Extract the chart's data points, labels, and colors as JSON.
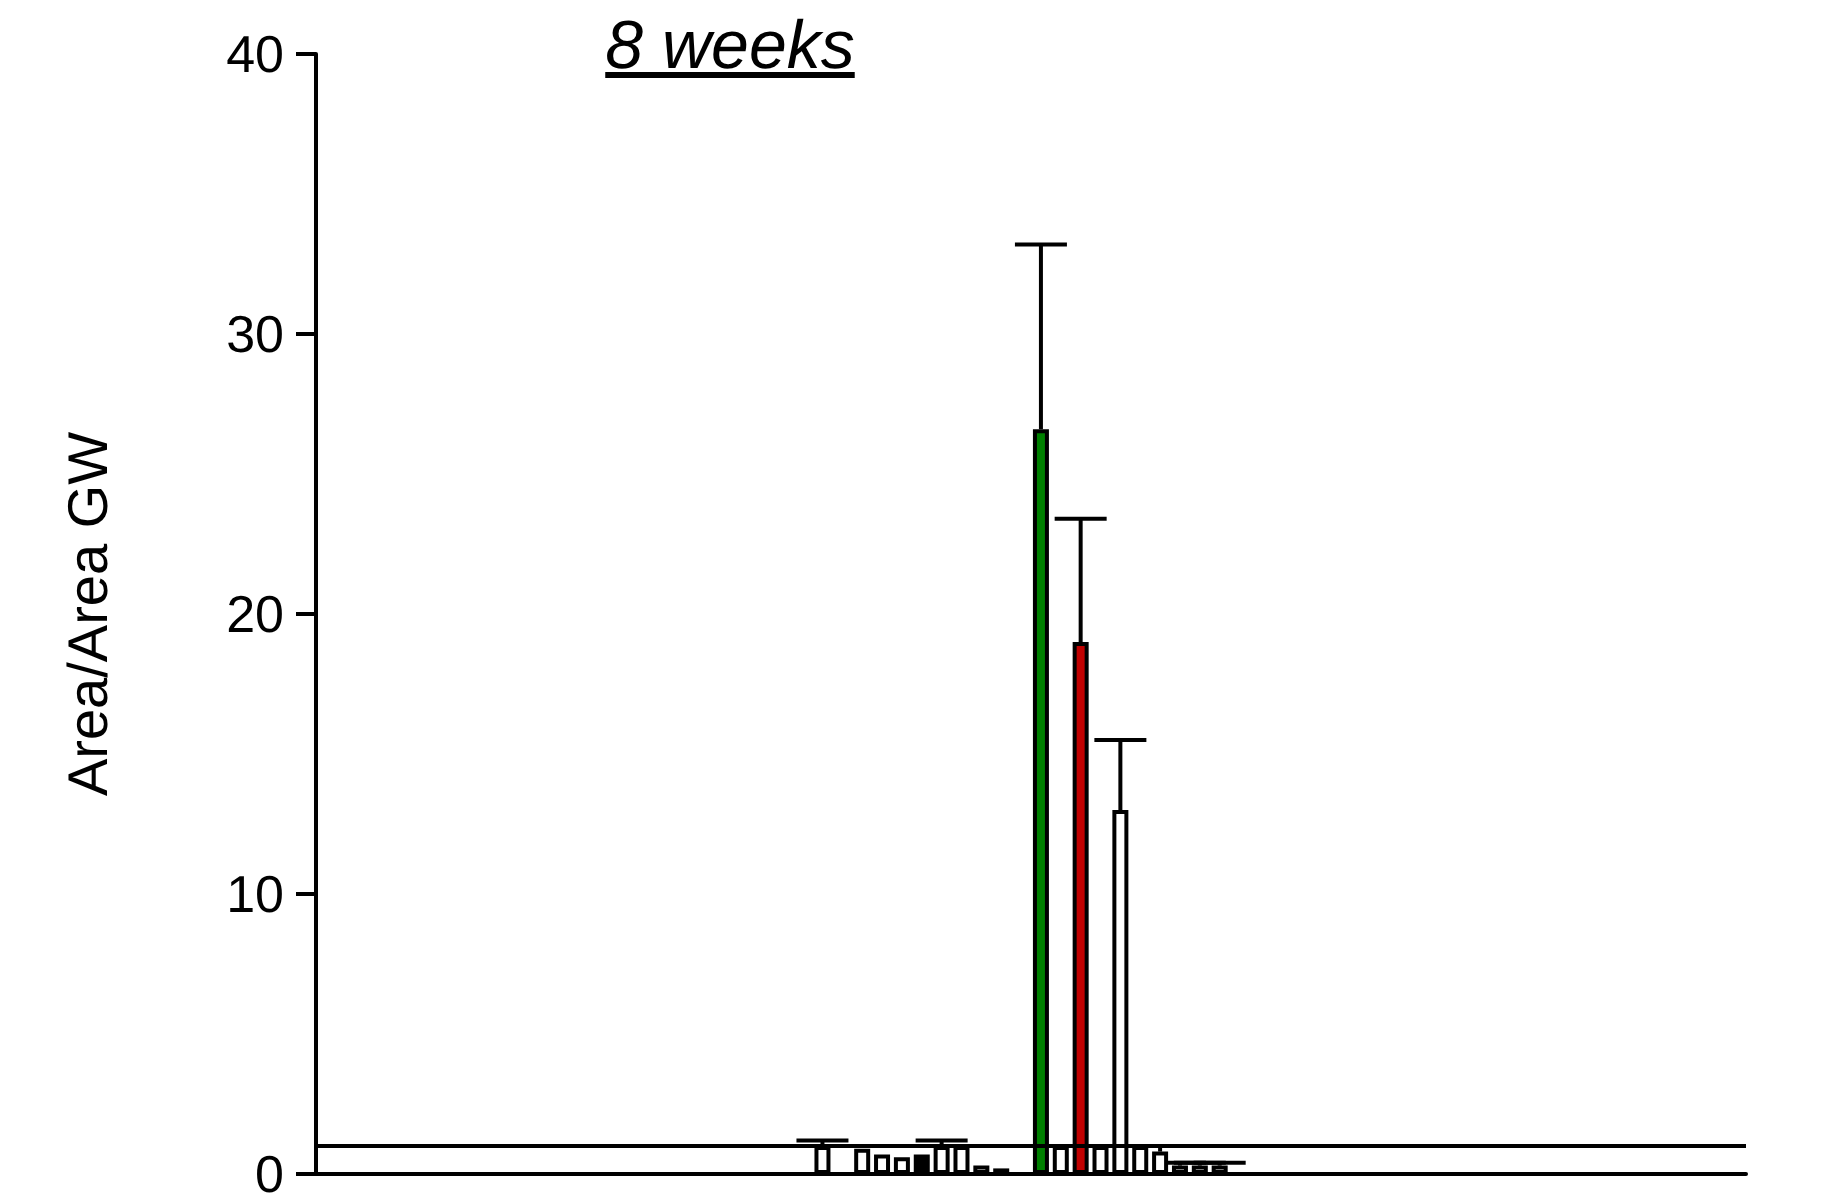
{
  "chart_data": {
    "type": "bar",
    "title": "8 weeks",
    "ylabel": "Area/Area GW",
    "categories": [
      null,
      null,
      null,
      null,
      null,
      null,
      null,
      null,
      null,
      null,
      null,
      null,
      null,
      null,
      null,
      null,
      null,
      null,
      null,
      null,
      null,
      null,
      null,
      null,
      null,
      null,
      null,
      null,
      null,
      null,
      null,
      null,
      null,
      null,
      null,
      null,
      null,
      null,
      null,
      null,
      null,
      null,
      null,
      null,
      null,
      null,
      null,
      null,
      null,
      null,
      null,
      null,
      null,
      null,
      null,
      null,
      null,
      null,
      null,
      null,
      null,
      null,
      null,
      null,
      null,
      null,
      null,
      null,
      null,
      null,
      null,
      null
    ],
    "values": [
      null,
      null,
      null,
      null,
      null,
      null,
      null,
      null,
      null,
      null,
      null,
      null,
      null,
      null,
      null,
      null,
      null,
      null,
      null,
      null,
      null,
      null,
      null,
      null,
      null,
      1.0,
      null,
      0.9,
      0.7,
      0.6,
      0.7,
      1.0,
      1.0,
      0.3,
      0.2,
      null,
      26.6,
      1.0,
      19.0,
      1.0,
      13.0,
      1.0,
      0.8,
      0.3,
      0.3,
      0.3,
      null,
      null,
      null,
      null,
      null,
      null,
      null,
      null,
      null,
      null,
      null,
      null,
      null,
      null,
      null,
      null,
      null,
      null,
      null,
      null,
      null,
      null,
      null,
      null,
      null,
      null
    ],
    "errors": [
      null,
      null,
      null,
      null,
      null,
      null,
      null,
      null,
      null,
      null,
      null,
      null,
      null,
      null,
      null,
      null,
      null,
      null,
      null,
      null,
      null,
      null,
      null,
      null,
      null,
      0.2,
      null,
      null,
      null,
      null,
      null,
      0.2,
      null,
      null,
      null,
      null,
      6.6,
      null,
      4.4,
      null,
      2.5,
      null,
      0.2,
      0.1,
      0.1,
      0.1,
      null,
      null,
      null,
      null,
      null,
      null,
      null,
      null,
      null,
      null,
      null,
      null,
      null,
      null,
      null,
      null,
      null,
      null,
      null,
      null,
      null,
      null,
      null,
      null,
      null,
      null
    ],
    "colors": [
      "#ffffff",
      "#ffffff",
      "#ffffff",
      "#ffffff",
      "#ffffff",
      "#ffffff",
      "#ffffff",
      "#ffffff",
      "#ffffff",
      "#ffffff",
      "#ffffff",
      "#ffffff",
      "#ffffff",
      "#ffffff",
      "#ffffff",
      "#ffffff",
      "#ffffff",
      "#ffffff",
      "#ffffff",
      "#ffffff",
      "#ffffff",
      "#ffffff",
      "#ffffff",
      "#ffffff",
      "#ffffff",
      "#ffffff",
      "#ffffff",
      "#ffffff",
      "#ffffff",
      "#ffffff",
      "#000000",
      "#ffffff",
      "#ffffff",
      "#ffffff",
      "#ffffff",
      "#ffffff",
      "#008000",
      "#ffffff",
      "#c00000",
      "#ffffff",
      "#ffffff",
      "#ffffff",
      "#ffffff",
      "#ffffff",
      "#ffffff",
      "#ffffff",
      "#ffffff",
      "#ffffff",
      "#ffffff",
      "#ffffff",
      "#ffffff",
      "#ffffff",
      "#ffffff",
      "#ffffff",
      "#ffffff",
      "#ffffff",
      "#ffffff",
      "#ffffff",
      "#ffffff",
      "#ffffff",
      "#ffffff",
      "#ffffff",
      "#ffffff",
      "#ffffff",
      "#ffffff",
      "#ffffff",
      "#ffffff",
      "#ffffff",
      "#ffffff",
      "#ffffff",
      "#ffffff",
      "#ffffff"
    ],
    "ylim": [
      0,
      40
    ],
    "yticks": [
      0,
      10,
      20,
      30,
      40
    ],
    "ref_lines": [
      {
        "axis": "y",
        "value": 1,
        "color": "#000000"
      }
    ],
    "grid": false
  }
}
